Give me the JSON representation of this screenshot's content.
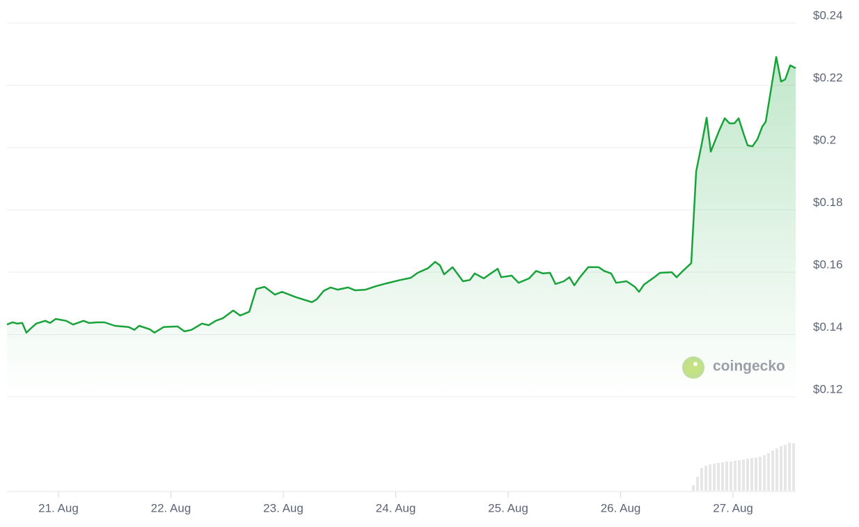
{
  "chart_data": {
    "type": "line",
    "color": "#18a23a",
    "watermark": "coingecko",
    "xlim": [
      20.542,
      27.557
    ],
    "xticks": [
      {
        "value": 21,
        "label": "21. Aug"
      },
      {
        "value": 22,
        "label": "22. Aug"
      },
      {
        "value": 23,
        "label": "23. Aug"
      },
      {
        "value": 24,
        "label": "24. Aug"
      },
      {
        "value": 25,
        "label": "25. Aug"
      },
      {
        "value": 26,
        "label": "26. Aug"
      },
      {
        "value": 27,
        "label": "27. Aug"
      }
    ],
    "ylim": [
      0.12,
      0.24
    ],
    "yticks": [
      {
        "value": 0.12,
        "label": "$0.12"
      },
      {
        "value": 0.14,
        "label": "$0.14"
      },
      {
        "value": 0.16,
        "label": "$0.16"
      },
      {
        "value": 0.18,
        "label": "$0.18"
      },
      {
        "value": 0.2,
        "label": "$0.2"
      },
      {
        "value": 0.22,
        "label": "$0.22"
      },
      {
        "value": 0.24,
        "label": "$0.24"
      }
    ],
    "grid": true,
    "x": [
      20.542,
      20.591,
      20.635,
      20.678,
      20.715,
      20.759,
      20.802,
      20.882,
      20.926,
      20.975,
      21.068,
      21.13,
      21.223,
      21.272,
      21.347,
      21.409,
      21.502,
      21.625,
      21.675,
      21.718,
      21.811,
      21.854,
      21.935,
      22.059,
      22.121,
      22.183,
      22.276,
      22.337,
      22.399,
      22.461,
      22.554,
      22.616,
      22.697,
      22.759,
      22.833,
      22.926,
      22.988,
      23.111,
      23.254,
      23.297,
      23.359,
      23.421,
      23.483,
      23.576,
      23.638,
      23.731,
      23.824,
      23.916,
      24.04,
      24.133,
      24.195,
      24.288,
      24.35,
      24.393,
      24.43,
      24.505,
      24.598,
      24.659,
      24.703,
      24.783,
      24.845,
      24.907,
      24.938,
      25.031,
      25.093,
      25.186,
      25.248,
      25.31,
      25.372,
      25.421,
      25.495,
      25.545,
      25.588,
      25.638,
      25.712,
      25.805,
      25.854,
      25.916,
      25.96,
      26.053,
      26.127,
      26.164,
      26.207,
      26.3,
      26.35,
      26.455,
      26.498,
      26.548,
      26.628,
      26.672,
      26.721,
      26.765,
      26.802,
      26.876,
      26.926,
      26.969,
      27.012,
      27.05,
      27.093,
      27.13,
      27.173,
      27.217,
      27.26,
      27.291,
      27.328,
      27.384,
      27.427,
      27.464,
      27.508,
      27.557
    ],
    "values": [
      0.1432,
      0.1439,
      0.1435,
      0.1437,
      0.1406,
      0.1421,
      0.1435,
      0.1444,
      0.1437,
      0.145,
      0.1444,
      0.1432,
      0.1444,
      0.1437,
      0.1439,
      0.1439,
      0.1428,
      0.1424,
      0.1415,
      0.1428,
      0.1417,
      0.1406,
      0.1424,
      0.1426,
      0.141,
      0.1415,
      0.1435,
      0.143,
      0.1444,
      0.1452,
      0.1477,
      0.1461,
      0.1473,
      0.1546,
      0.1553,
      0.1528,
      0.1537,
      0.152,
      0.1504,
      0.1513,
      0.154,
      0.1551,
      0.1544,
      0.1551,
      0.1542,
      0.1544,
      0.1555,
      0.1564,
      0.1575,
      0.1582,
      0.1598,
      0.1613,
      0.1633,
      0.1622,
      0.1593,
      0.1616,
      0.1571,
      0.1575,
      0.1596,
      0.158,
      0.1596,
      0.1611,
      0.1584,
      0.1589,
      0.1566,
      0.158,
      0.1604,
      0.1596,
      0.1598,
      0.1562,
      0.1571,
      0.1584,
      0.1558,
      0.1584,
      0.1616,
      0.1616,
      0.1604,
      0.1596,
      0.1566,
      0.1571,
      0.1553,
      0.1537,
      0.156,
      0.1584,
      0.1598,
      0.16,
      0.1584,
      0.1602,
      0.1629,
      0.1924,
      0.2011,
      0.2096,
      0.1987,
      0.2054,
      0.2094,
      0.2078,
      0.2078,
      0.2094,
      0.2045,
      0.2007,
      0.2004,
      0.2027,
      0.2067,
      0.2083,
      0.2165,
      0.2291,
      0.2212,
      0.2219,
      0.2264,
      0.2255
    ],
    "volume": {
      "color": "#e6e6e6",
      "lim": [
        0,
        125
      ],
      "x": [
        26.647,
        26.684,
        26.721,
        26.759,
        26.796,
        26.833,
        26.87,
        26.907,
        26.944,
        26.981,
        27.019,
        27.056,
        27.093,
        27.13,
        27.167,
        27.204,
        27.241,
        27.279,
        27.316,
        27.353,
        27.39,
        27.427,
        27.464,
        27.502,
        27.539
      ],
      "values": [
        8,
        20,
        33,
        36,
        38,
        39,
        40,
        41,
        42,
        42,
        43,
        44,
        45,
        46,
        47,
        48,
        49,
        51,
        54,
        58,
        61,
        64,
        66,
        69,
        68
      ]
    }
  }
}
